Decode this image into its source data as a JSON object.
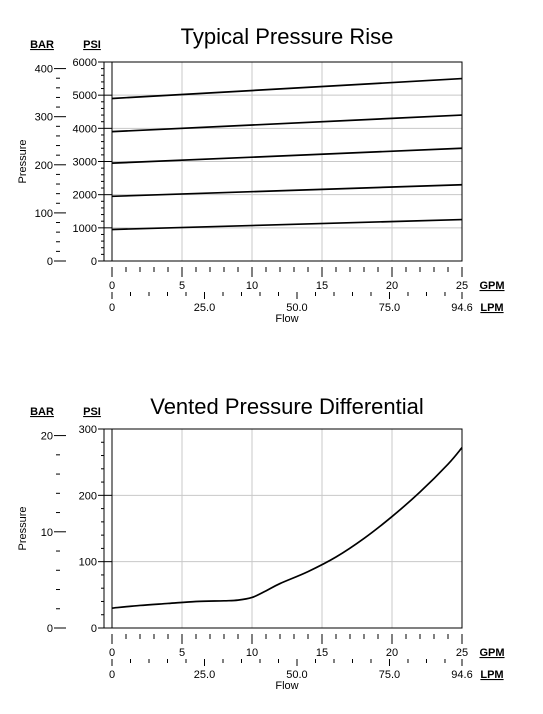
{
  "chart_data": [
    {
      "type": "line",
      "title": "Typical Pressure Rise",
      "ylabel": "Pressure",
      "xlabel": "Flow",
      "unit_left": "BAR",
      "unit_right": "PSI",
      "unit_gpm": "GPM",
      "unit_lpm": "LPM",
      "psi_ticks": [
        "0",
        "1000",
        "2000",
        "3000",
        "4000",
        "5000",
        "6000"
      ],
      "bar_ticks": [
        "0",
        "100",
        "200",
        "300",
        "400"
      ],
      "gpm_ticks": [
        "0",
        "5",
        "10",
        "15",
        "20",
        "25"
      ],
      "lpm_ticks": [
        "0",
        "25.0",
        "50.0",
        "75.0",
        "94.6"
      ],
      "xlim": [
        0,
        25
      ],
      "ylim": [
        0,
        6000
      ],
      "grid": true,
      "series": [
        {
          "x": [
            0,
            25
          ],
          "y": [
            950,
            1250
          ]
        },
        {
          "x": [
            0,
            25
          ],
          "y": [
            1950,
            2300
          ]
        },
        {
          "x": [
            0,
            25
          ],
          "y": [
            2950,
            3400
          ]
        },
        {
          "x": [
            0,
            25
          ],
          "y": [
            3900,
            4400
          ]
        },
        {
          "x": [
            0,
            25
          ],
          "y": [
            4900,
            5500
          ]
        }
      ]
    },
    {
      "type": "line",
      "title": "Vented Pressure Differential",
      "ylabel": "Pressure",
      "xlabel": "Flow",
      "unit_left": "BAR",
      "unit_right": "PSI",
      "unit_gpm": "GPM",
      "unit_lpm": "LPM",
      "psi_ticks": [
        "0",
        "100",
        "200",
        "300"
      ],
      "bar_ticks": [
        "0",
        "10",
        "20"
      ],
      "gpm_ticks": [
        "0",
        "5",
        "10",
        "15",
        "20",
        "25"
      ],
      "lpm_ticks": [
        "0",
        "25.0",
        "50.0",
        "75.0",
        "94.6"
      ],
      "xlim": [
        0,
        25
      ],
      "ylim": [
        0,
        300
      ],
      "grid": true,
      "series": [
        {
          "x": [
            0,
            2,
            4,
            6,
            8,
            9,
            10,
            11,
            12,
            14,
            16,
            18,
            20,
            22,
            24,
            25
          ],
          "y": [
            30,
            34,
            37,
            40,
            41,
            42,
            46,
            56,
            67,
            85,
            107,
            135,
            168,
            205,
            247,
            272
          ]
        }
      ]
    }
  ]
}
